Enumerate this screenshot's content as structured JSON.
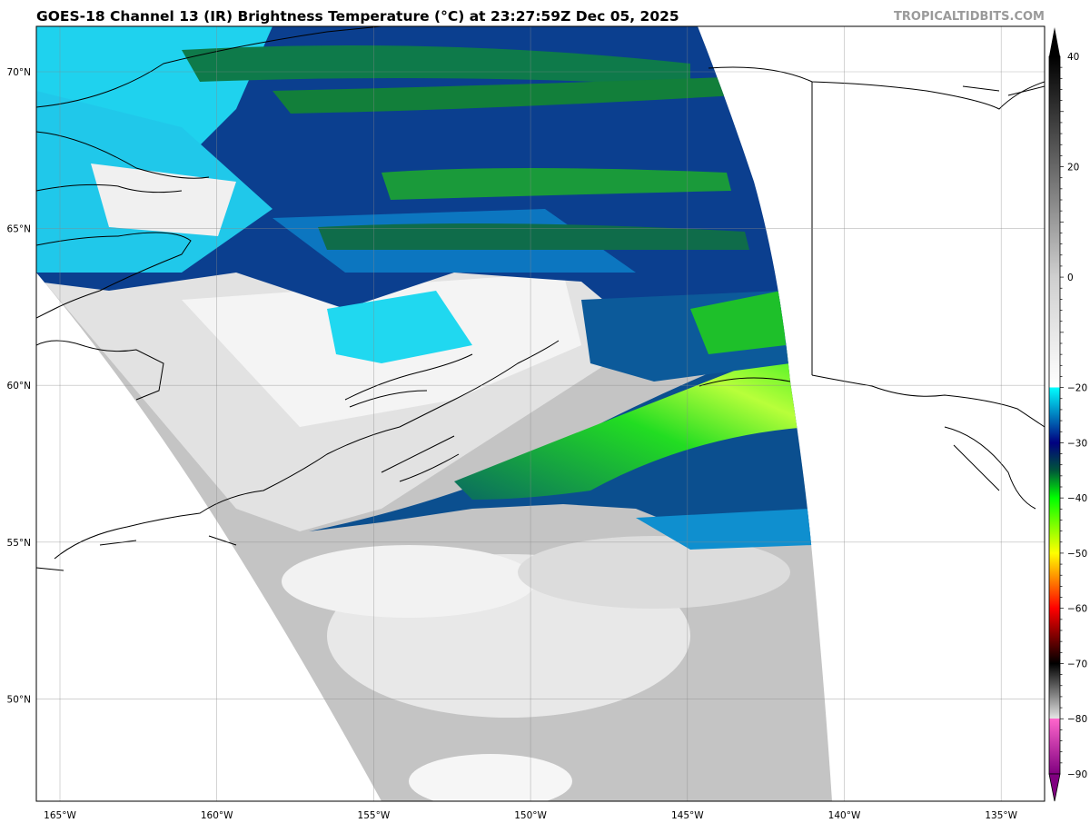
{
  "header": {
    "title": "GOES-18 Channel 13 (IR) Brightness Temperature (°C) at 23:27:59Z Dec 05, 2025",
    "credit": "TROPICALTIDBITS.COM"
  },
  "map": {
    "longitude_labels": [
      "165°W",
      "160°W",
      "155°W",
      "150°W",
      "145°W",
      "140°W",
      "135°W"
    ],
    "latitude_labels": [
      "70°N",
      "65°N",
      "60°N",
      "55°N",
      "50°N"
    ],
    "grid": true,
    "region": "Gulf of Alaska / Alaska"
  },
  "colorbar": {
    "range": [
      -90,
      40
    ],
    "extend": "both",
    "tick_labels": [
      "40",
      "20",
      "0",
      "−20",
      "−30",
      "−40",
      "−50",
      "−60",
      "−70",
      "−80",
      "−90"
    ],
    "tick_values": [
      40,
      20,
      0,
      -20,
      -30,
      -40,
      -50,
      -60,
      -70,
      -80,
      -90
    ],
    "color_stops": [
      {
        "value": 40,
        "color": "#000000"
      },
      {
        "value": 0,
        "color": "#cfcfcf"
      },
      {
        "value": -20,
        "color": "#ffffff"
      },
      {
        "value": -20,
        "color": "#00ffff"
      },
      {
        "value": -30,
        "color": "#000080"
      },
      {
        "value": -35,
        "color": "#00553a"
      },
      {
        "value": -40,
        "color": "#00ff00"
      },
      {
        "value": -50,
        "color": "#ffff00"
      },
      {
        "value": -60,
        "color": "#ff0000"
      },
      {
        "value": -70,
        "color": "#000000"
      },
      {
        "value": -80,
        "color": "#e6e6e6"
      },
      {
        "value": -80,
        "color": "#ff66cc"
      },
      {
        "value": -90,
        "color": "#800080"
      }
    ]
  }
}
